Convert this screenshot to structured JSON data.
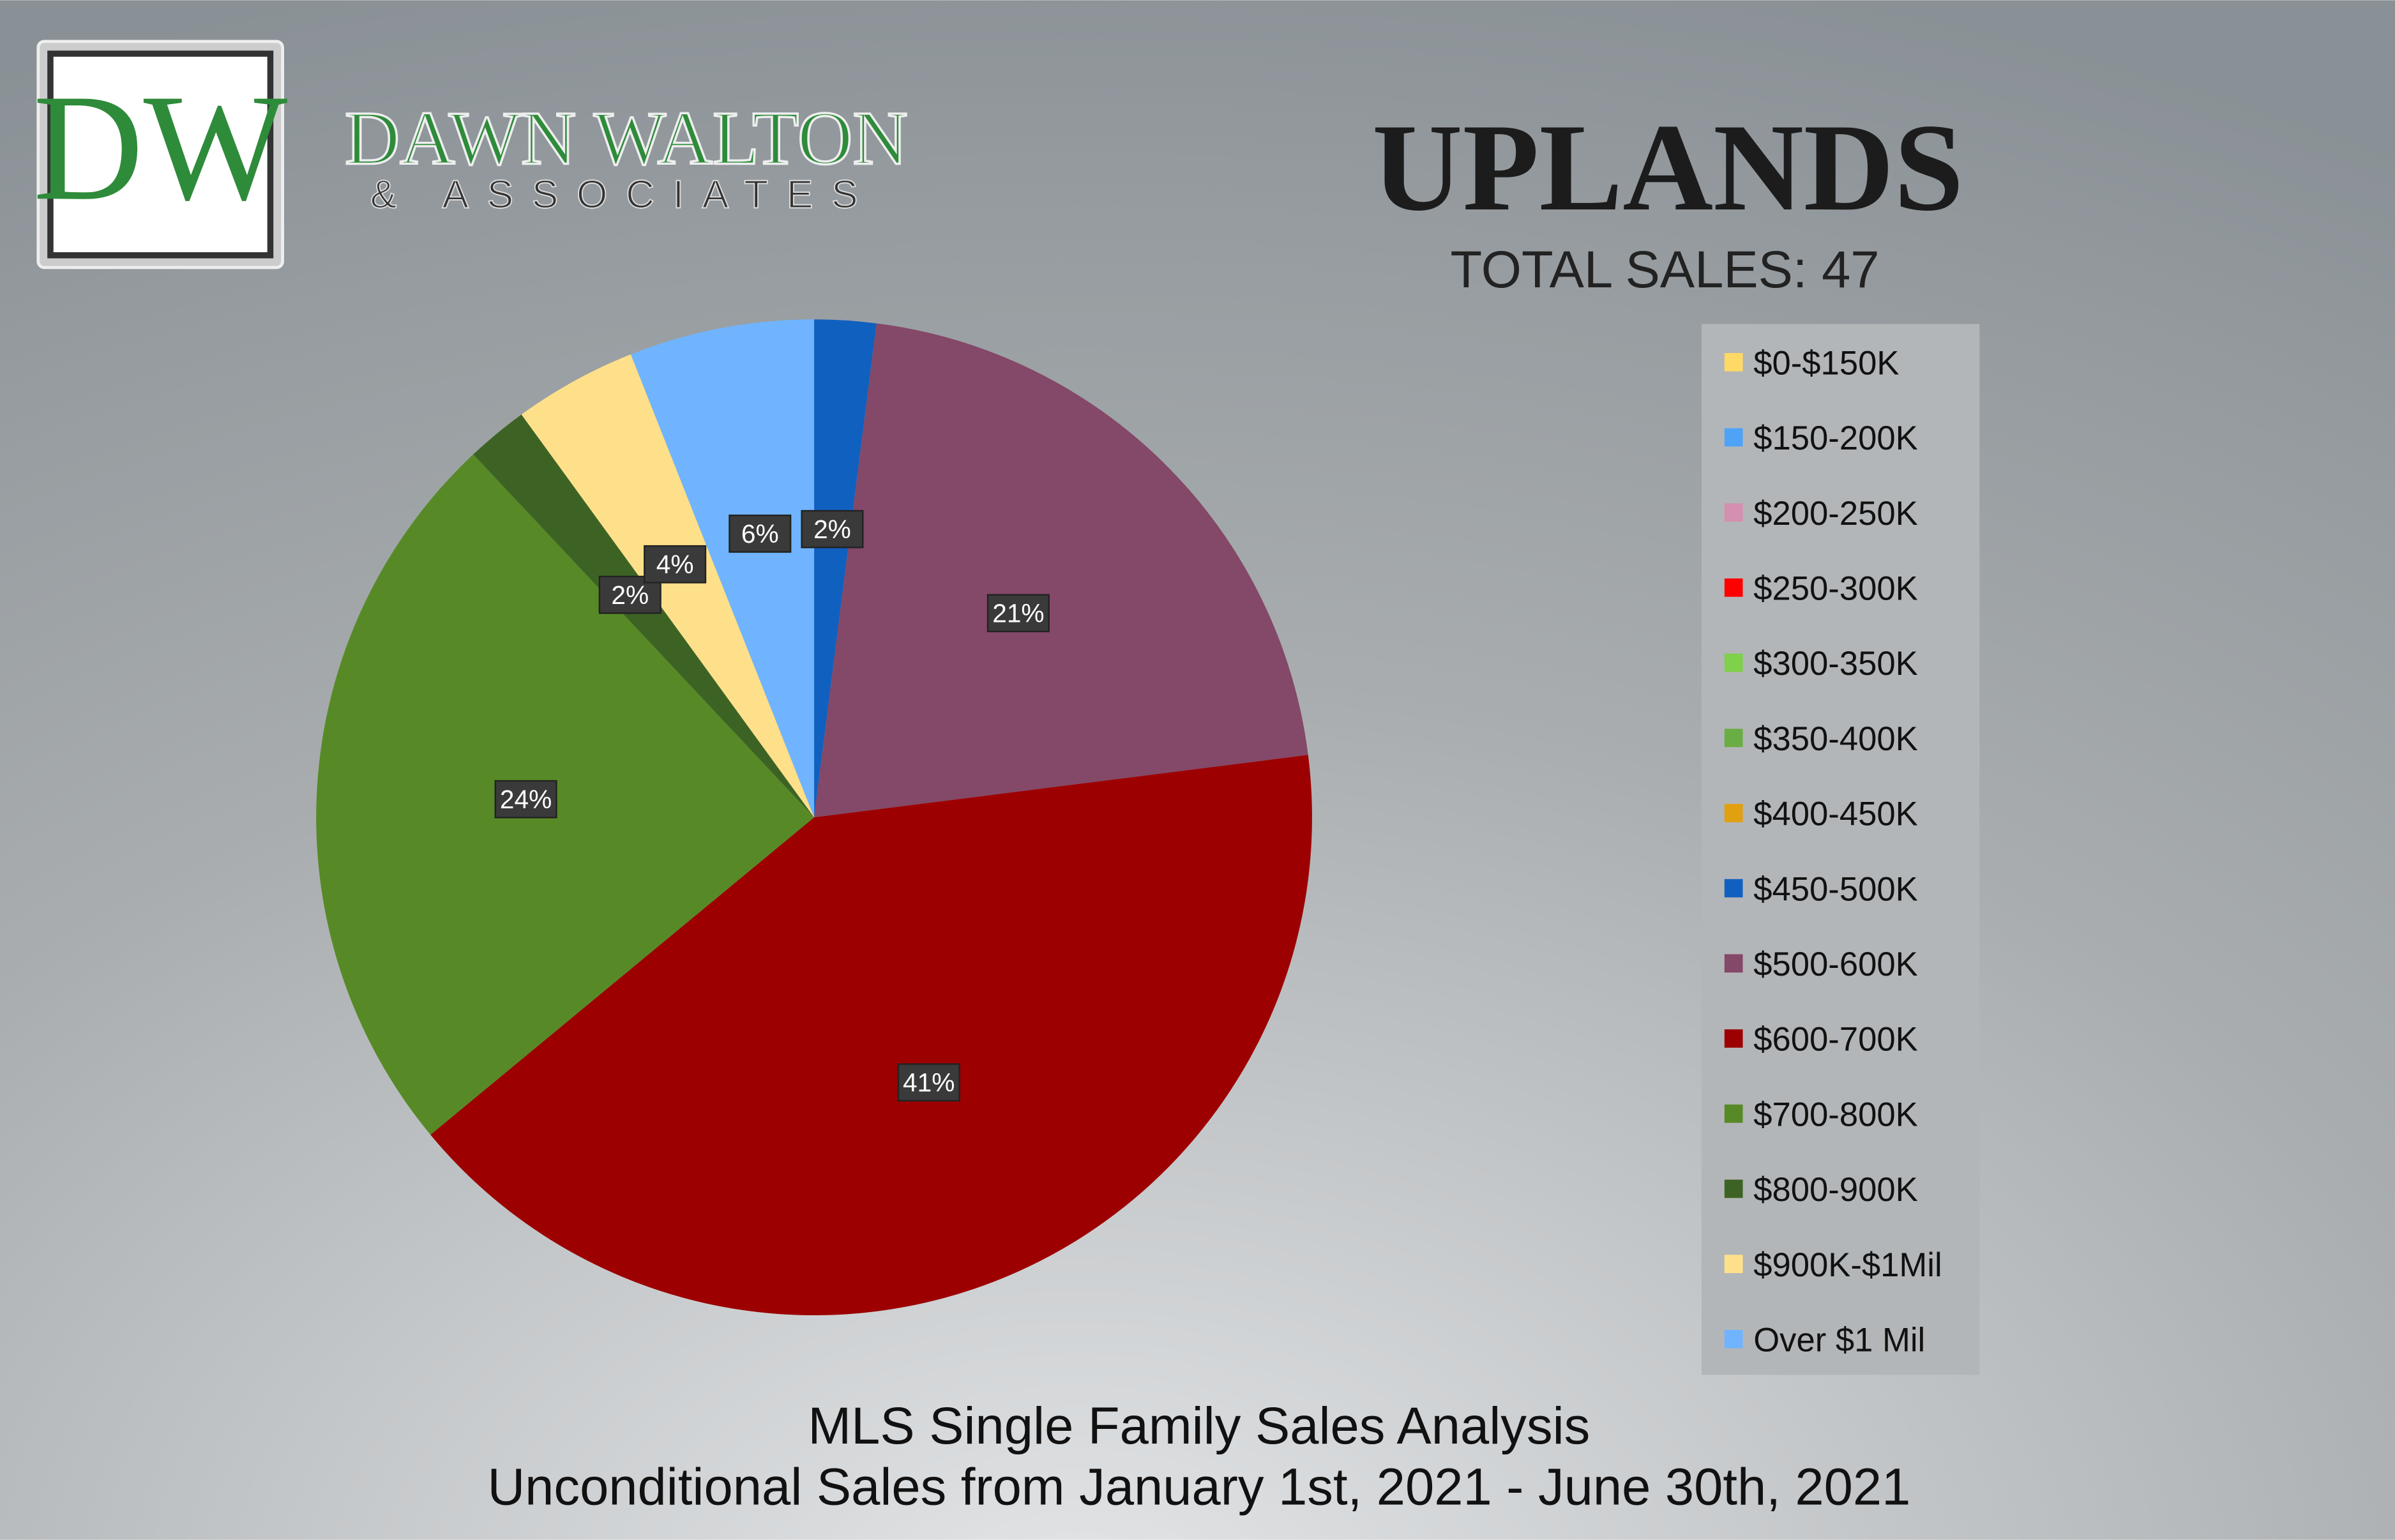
{
  "logo": {
    "monogram": "DW",
    "name": "DAWN WALTON",
    "tagline": "& ASSOCIATES"
  },
  "chart_data": {
    "type": "pie",
    "title": "Uplands",
    "subtitle": "TOTAL SALES: 47",
    "footer": [
      "MLS Single Family Sales Analysis",
      "Unconditional Sales from January 1st, 2021 - June 30th, 2021"
    ],
    "categories": [
      "$0-$150K",
      "$150-200K",
      "$200-250K",
      "$250-300K",
      "$300-350K",
      "$350-400K",
      "$400-450K",
      "$450-500K",
      "$500-600K",
      "$600-700K",
      "$700-800K",
      "$800-900K",
      "$900K-$1Mil",
      "Over $1 Mil"
    ],
    "values": [
      0,
      0,
      0,
      0,
      0,
      0,
      0,
      2,
      21,
      41,
      24,
      2,
      4,
      6
    ],
    "value_labels": [
      null,
      null,
      null,
      null,
      null,
      null,
      null,
      "2%",
      "21%",
      "41%",
      "24%",
      "2%",
      "4%",
      "6%"
    ],
    "colors": [
      "#ffd966",
      "#4fa3f7",
      "#d58faf",
      "#ff0000",
      "#7fd04a",
      "#6aad45",
      "#e0a010",
      "#1060c0",
      "#844868",
      "#9c0000",
      "#578a26",
      "#3d6324",
      "#ffe08a",
      "#70b4ff"
    ],
    "legend": "right"
  }
}
